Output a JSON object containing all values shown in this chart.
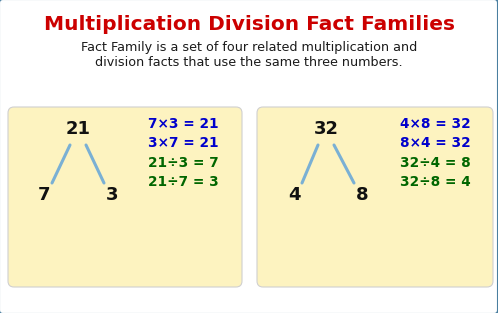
{
  "title": "Multiplication Division Fact Families",
  "title_color": "#cc0000",
  "subtitle_line1": "Fact Family is a set of four related multiplication and",
  "subtitle_line2": "division facts that use the same three numbers.",
  "subtitle_color": "#1a1a1a",
  "box_bg_color": "#fdf3c0",
  "box_edge_color": "#d0d0d0",
  "outer_bg": "#ffffff",
  "outer_border": "#4a7fa0",
  "box1": {
    "top_num": "21",
    "left_num": "7",
    "right_num": "3",
    "mult_facts": [
      "7×3 = 21",
      "3×7 = 21"
    ],
    "div_facts": [
      "21÷3 = 7",
      "21÷7 = 3"
    ]
  },
  "box2": {
    "top_num": "32",
    "left_num": "4",
    "right_num": "8",
    "mult_facts": [
      "4×8 = 32",
      "8×4 = 32"
    ],
    "div_facts": [
      "32÷4 = 8",
      "32÷8 = 4"
    ]
  },
  "mult_color": "#0000cc",
  "div_color": "#006600",
  "num_color": "#111111",
  "line_color": "#7ab0d4",
  "fig_w": 4.98,
  "fig_h": 3.13,
  "dpi": 100
}
